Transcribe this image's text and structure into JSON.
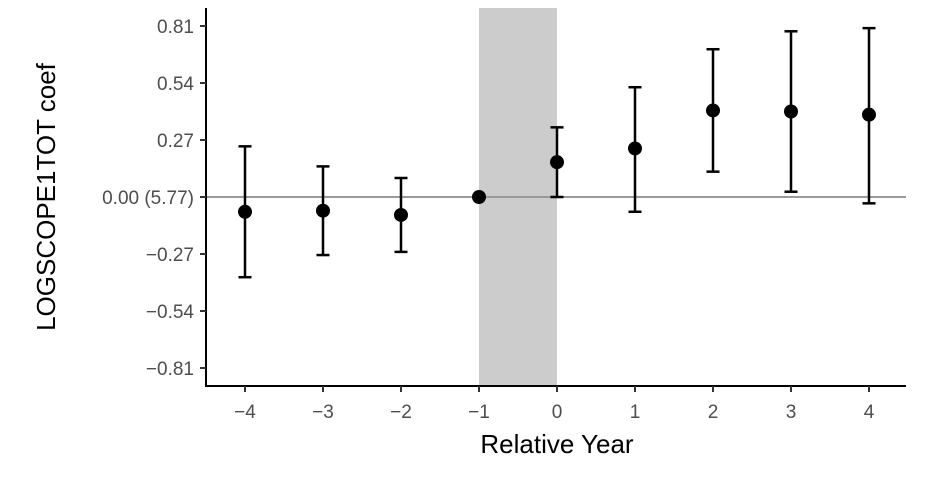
{
  "chart_data": {
    "type": "scatter",
    "subtype": "event-study point estimates with confidence interval error bars",
    "xlabel": "Relative Year",
    "ylabel": "LOGSCOPE1TOT coef",
    "x_ticks": [
      "−4",
      "−3",
      "−2",
      "−1",
      "0",
      "1",
      "2",
      "3",
      "4"
    ],
    "x_tick_values": [
      -4,
      -3,
      -2,
      -1,
      0,
      1,
      2,
      3,
      4
    ],
    "y_ticks": [
      "0.81",
      "0.54",
      "0.27",
      "0.00 (5.77)",
      "−0.27",
      "−0.54",
      "−0.81"
    ],
    "y_tick_values": [
      0.81,
      0.54,
      0.27,
      0.0,
      -0.27,
      -0.54,
      -0.81
    ],
    "xlim": [
      -4.5,
      4.5
    ],
    "ylim": [
      -0.9,
      0.9
    ],
    "reference_line_y": 0,
    "shaded_region_x": [
      -1,
      0
    ],
    "grid": false,
    "colors": {
      "points": "#000000",
      "reference_line": "#999999",
      "shaded_region": "#cccccc",
      "axis": "#000000"
    },
    "points": [
      {
        "x": -4,
        "y": -0.07,
        "lower": -0.38,
        "upper": 0.24
      },
      {
        "x": -3,
        "y": -0.065,
        "lower": -0.275,
        "upper": 0.145
      },
      {
        "x": -2,
        "y": -0.085,
        "lower": -0.26,
        "upper": 0.09
      },
      {
        "x": -1,
        "y": 0.0,
        "lower": null,
        "upper": null
      },
      {
        "x": 0,
        "y": 0.165,
        "lower": 0.0,
        "upper": 0.33
      },
      {
        "x": 1,
        "y": 0.23,
        "lower": -0.07,
        "upper": 0.52
      },
      {
        "x": 2,
        "y": 0.41,
        "lower": 0.12,
        "upper": 0.7
      },
      {
        "x": 3,
        "y": 0.405,
        "lower": 0.025,
        "upper": 0.785
      },
      {
        "x": 4,
        "y": 0.39,
        "lower": -0.03,
        "upper": 0.8
      }
    ]
  }
}
